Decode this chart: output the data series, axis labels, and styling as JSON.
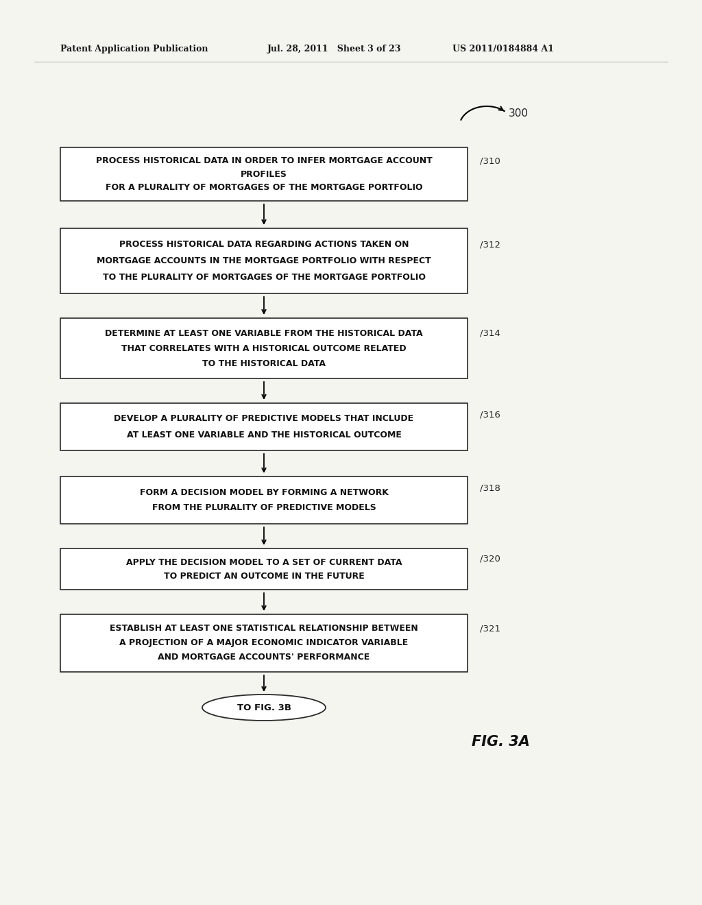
{
  "background_color": "#f5f5f0",
  "page_bg": "#f5f5f0",
  "header_left": "Patent Application Publication",
  "header_mid": "Jul. 28, 2011   Sheet 3 of 23",
  "header_right": "US 2011/0184884 A1",
  "figure_label": "FIG. 3A",
  "label_300": "300",
  "boxes": [
    {
      "id": "310",
      "label": "310",
      "lines": [
        "PROCESS HISTORICAL DATA IN ORDER TO INFER MORTGAGE ACCOUNT",
        "PROFILES",
        "FOR A PLURALITY OF MORTGAGES OF THE MORTGAGE PORTFOLIO"
      ]
    },
    {
      "id": "312",
      "label": "312",
      "lines": [
        "PROCESS HISTORICAL DATA REGARDING ACTIONS TAKEN ON",
        "MORTGAGE ACCOUNTS IN THE MORTGAGE PORTFOLIO WITH RESPECT",
        "TO THE PLURALITY OF MORTGAGES OF THE MORTGAGE PORTFOLIO"
      ]
    },
    {
      "id": "314",
      "label": "314",
      "lines": [
        "DETERMINE AT LEAST ONE VARIABLE FROM THE HISTORICAL DATA",
        "THAT CORRELATES WITH A HISTORICAL OUTCOME RELATED",
        "TO THE HISTORICAL DATA"
      ]
    },
    {
      "id": "316",
      "label": "316",
      "lines": [
        "DEVELOP A PLURALITY OF PREDICTIVE MODELS THAT INCLUDE",
        "AT LEAST ONE VARIABLE AND THE HISTORICAL OUTCOME"
      ]
    },
    {
      "id": "318",
      "label": "318",
      "lines": [
        "FORM A DECISION MODEL BY FORMING A NETWORK",
        "FROM THE PLURALITY OF PREDICTIVE MODELS"
      ]
    },
    {
      "id": "320",
      "label": "320",
      "lines": [
        "APPLY THE DECISION MODEL TO A SET OF CURRENT DATA",
        "TO PREDICT AN OUTCOME IN THE FUTURE"
      ]
    },
    {
      "id": "321",
      "label": "321",
      "lines": [
        "ESTABLISH AT LEAST ONE STATISTICAL RELATIONSHIP BETWEEN",
        "A PROJECTION OF A MAJOR ECONOMIC INDICATOR VARIABLE",
        "AND MORTGAGE ACCOUNTS' PERFORMANCE"
      ]
    }
  ],
  "terminal_text": "TO FIG. 3B",
  "font_size_box": 9.0,
  "font_size_label": 9.5,
  "font_size_header": 9.0,
  "font_size_fig": 15,
  "font_size_terminal": 9.5
}
